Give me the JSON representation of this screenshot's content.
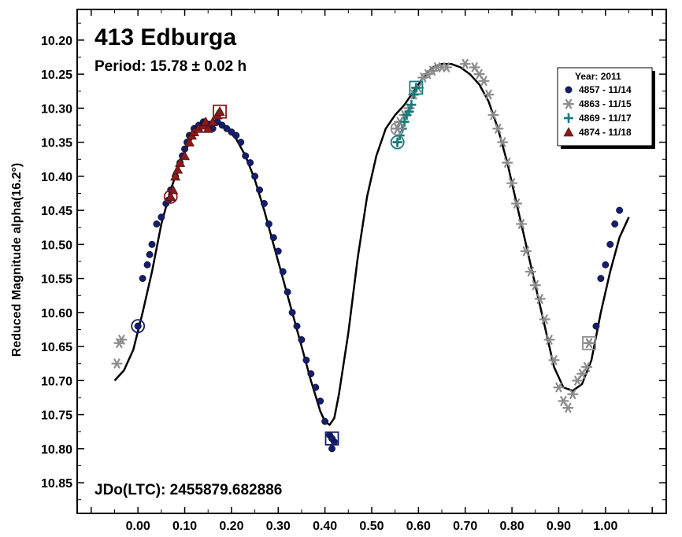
{
  "chart_data": {
    "type": "scatter",
    "title": "413 Edburga",
    "subtitle": "Period: 15.78 ± 0.02 h",
    "annotation": "JDo(LTC): 2455879.682886",
    "ylabel": "Reduced Magnitude alpha(16.2°)",
    "xlabel": "",
    "xlim": [
      -0.13,
      1.13
    ],
    "ylim": [
      10.895,
      10.155
    ],
    "y_inverted": true,
    "grid": false,
    "x_ticks": [
      "0.00",
      "0.10",
      "0.20",
      "0.30",
      "0.40",
      "0.50",
      "0.60",
      "0.70",
      "0.80",
      "0.90",
      "1.00"
    ],
    "y_ticks": [
      "10.20",
      "10.25",
      "10.30",
      "10.35",
      "10.40",
      "10.45",
      "10.50",
      "10.55",
      "10.60",
      "10.65",
      "10.70",
      "10.75",
      "10.80",
      "10.85"
    ],
    "legend": {
      "title": "Year: 2011",
      "placement": "top-right",
      "entries": [
        "4857 - 11/14",
        "4863 - 11/15",
        "4869 - 11/17",
        "4874 - 11/18"
      ]
    },
    "series": [
      {
        "name": "4857 - 11/14",
        "marker": "circle",
        "color": "#141d6e",
        "start_marker": {
          "x": 0.0,
          "y": 10.62
        },
        "end_marker": {
          "x": 0.415,
          "y": 10.785
        },
        "points": [
          [
            0.0,
            10.62
          ],
          [
            0.01,
            10.55
          ],
          [
            0.02,
            10.53
          ],
          [
            0.025,
            10.515
          ],
          [
            0.03,
            10.5
          ],
          [
            0.04,
            10.47
          ],
          [
            0.05,
            10.46
          ],
          [
            0.06,
            10.44
          ],
          [
            0.065,
            10.435
          ],
          [
            0.07,
            10.42
          ],
          [
            0.08,
            10.4
          ],
          [
            0.09,
            10.38
          ],
          [
            0.095,
            10.37
          ],
          [
            0.1,
            10.36
          ],
          [
            0.105,
            10.35
          ],
          [
            0.11,
            10.34
          ],
          [
            0.12,
            10.33
          ],
          [
            0.13,
            10.325
          ],
          [
            0.14,
            10.32
          ],
          [
            0.15,
            10.325
          ],
          [
            0.16,
            10.33
          ],
          [
            0.17,
            10.32
          ],
          [
            0.18,
            10.325
          ],
          [
            0.19,
            10.33
          ],
          [
            0.2,
            10.335
          ],
          [
            0.21,
            10.34
          ],
          [
            0.22,
            10.35
          ],
          [
            0.23,
            10.37
          ],
          [
            0.24,
            10.38
          ],
          [
            0.25,
            10.4
          ],
          [
            0.26,
            10.42
          ],
          [
            0.27,
            10.44
          ],
          [
            0.28,
            10.47
          ],
          [
            0.29,
            10.49
          ],
          [
            0.3,
            10.51
          ],
          [
            0.31,
            10.54
          ],
          [
            0.32,
            10.57
          ],
          [
            0.33,
            10.6
          ],
          [
            0.34,
            10.62
          ],
          [
            0.35,
            10.64
          ],
          [
            0.36,
            10.67
          ],
          [
            0.37,
            10.69
          ],
          [
            0.38,
            10.71
          ],
          [
            0.39,
            10.73
          ],
          [
            0.4,
            10.76
          ],
          [
            0.41,
            10.78
          ],
          [
            0.415,
            10.785
          ],
          [
            0.42,
            10.79
          ],
          [
            0.415,
            10.8
          ],
          [
            0.98,
            10.62
          ],
          [
            0.99,
            10.55
          ],
          [
            1.0,
            10.53
          ],
          [
            1.01,
            10.5
          ],
          [
            1.02,
            10.47
          ],
          [
            1.03,
            10.45
          ]
        ]
      },
      {
        "name": "4863 - 11/15",
        "marker": "asterisk",
        "color": "#8c8c8c",
        "start_marker": {
          "x": 0.555,
          "y": 10.33
        },
        "end_marker": {
          "x": 0.965,
          "y": 10.645
        },
        "points": [
          [
            -0.045,
            10.675
          ],
          [
            -0.04,
            10.645
          ],
          [
            -0.035,
            10.64
          ],
          [
            0.555,
            10.33
          ],
          [
            0.56,
            10.32
          ],
          [
            0.57,
            10.31
          ],
          [
            0.58,
            10.3
          ],
          [
            0.59,
            10.28
          ],
          [
            0.6,
            10.27
          ],
          [
            0.61,
            10.255
          ],
          [
            0.62,
            10.25
          ],
          [
            0.63,
            10.245
          ],
          [
            0.64,
            10.24
          ],
          [
            0.65,
            10.24
          ],
          [
            0.66,
            10.24
          ],
          [
            0.7,
            10.235
          ],
          [
            0.72,
            10.24
          ],
          [
            0.73,
            10.25
          ],
          [
            0.74,
            10.26
          ],
          [
            0.75,
            10.28
          ],
          [
            0.76,
            10.31
          ],
          [
            0.77,
            10.33
          ],
          [
            0.78,
            10.35
          ],
          [
            0.79,
            10.38
          ],
          [
            0.8,
            10.41
          ],
          [
            0.81,
            10.44
          ],
          [
            0.82,
            10.47
          ],
          [
            0.83,
            10.51
          ],
          [
            0.84,
            10.54
          ],
          [
            0.85,
            10.56
          ],
          [
            0.86,
            10.58
          ],
          [
            0.87,
            10.61
          ],
          [
            0.88,
            10.64
          ],
          [
            0.89,
            10.67
          ],
          [
            0.9,
            10.71
          ],
          [
            0.91,
            10.73
          ],
          [
            0.92,
            10.74
          ],
          [
            0.93,
            10.72
          ],
          [
            0.94,
            10.7
          ],
          [
            0.95,
            10.69
          ],
          [
            0.96,
            10.68
          ],
          [
            0.965,
            10.645
          ]
        ]
      },
      {
        "name": "4869 - 11/17",
        "marker": "plus",
        "color": "#167a7a",
        "start_marker": {
          "x": 0.555,
          "y": 10.35
        },
        "end_marker": {
          "x": 0.595,
          "y": 10.27
        },
        "points": [
          [
            0.555,
            10.35
          ],
          [
            0.56,
            10.34
          ],
          [
            0.565,
            10.33
          ],
          [
            0.57,
            10.32
          ],
          [
            0.575,
            10.31
          ],
          [
            0.58,
            10.305
          ],
          [
            0.585,
            10.295
          ],
          [
            0.59,
            10.28
          ],
          [
            0.595,
            10.27
          ]
        ]
      },
      {
        "name": "4874 - 11/18",
        "marker": "triangle",
        "color": "#8b1a1a",
        "start_marker": {
          "x": 0.07,
          "y": 10.43
        },
        "end_marker": {
          "x": 0.175,
          "y": 10.305
        },
        "points": [
          [
            0.07,
            10.43
          ],
          [
            0.075,
            10.42
          ],
          [
            0.08,
            10.4
          ],
          [
            0.085,
            10.39
          ],
          [
            0.09,
            10.38
          ],
          [
            0.1,
            10.37
          ],
          [
            0.11,
            10.35
          ],
          [
            0.115,
            10.34
          ],
          [
            0.12,
            10.335
          ],
          [
            0.13,
            10.33
          ],
          [
            0.14,
            10.325
          ],
          [
            0.145,
            10.32
          ],
          [
            0.15,
            10.33
          ],
          [
            0.16,
            10.32
          ],
          [
            0.17,
            10.31
          ],
          [
            0.175,
            10.305
          ]
        ]
      }
    ],
    "fit_curve": {
      "name": "",
      "color": "#000000",
      "points": [
        [
          -0.05,
          10.7
        ],
        [
          -0.03,
          10.685
        ],
        [
          -0.01,
          10.655
        ],
        [
          0.01,
          10.6
        ],
        [
          0.03,
          10.54
        ],
        [
          0.05,
          10.47
        ],
        [
          0.07,
          10.42
        ],
        [
          0.09,
          10.38
        ],
        [
          0.11,
          10.35
        ],
        [
          0.13,
          10.33
        ],
        [
          0.15,
          10.32
        ],
        [
          0.17,
          10.32
        ],
        [
          0.19,
          10.33
        ],
        [
          0.21,
          10.345
        ],
        [
          0.23,
          10.37
        ],
        [
          0.25,
          10.405
        ],
        [
          0.27,
          10.45
        ],
        [
          0.29,
          10.5
        ],
        [
          0.31,
          10.55
        ],
        [
          0.33,
          10.6
        ],
        [
          0.35,
          10.65
        ],
        [
          0.37,
          10.7
        ],
        [
          0.39,
          10.745
        ],
        [
          0.4,
          10.76
        ],
        [
          0.41,
          10.765
        ],
        [
          0.42,
          10.755
        ],
        [
          0.43,
          10.72
        ],
        [
          0.45,
          10.63
        ],
        [
          0.47,
          10.52
        ],
        [
          0.49,
          10.43
        ],
        [
          0.51,
          10.37
        ],
        [
          0.53,
          10.33
        ],
        [
          0.55,
          10.31
        ],
        [
          0.57,
          10.295
        ],
        [
          0.59,
          10.275
        ],
        [
          0.61,
          10.255
        ],
        [
          0.63,
          10.24
        ],
        [
          0.65,
          10.235
        ],
        [
          0.67,
          10.235
        ],
        [
          0.69,
          10.24
        ],
        [
          0.71,
          10.25
        ],
        [
          0.73,
          10.265
        ],
        [
          0.75,
          10.29
        ],
        [
          0.77,
          10.33
        ],
        [
          0.79,
          10.38
        ],
        [
          0.81,
          10.44
        ],
        [
          0.83,
          10.5
        ],
        [
          0.85,
          10.56
        ],
        [
          0.87,
          10.62
        ],
        [
          0.89,
          10.68
        ],
        [
          0.91,
          10.71
        ],
        [
          0.93,
          10.715
        ],
        [
          0.95,
          10.705
        ],
        [
          0.97,
          10.67
        ],
        [
          0.99,
          10.6
        ],
        [
          1.01,
          10.54
        ],
        [
          1.03,
          10.49
        ],
        [
          1.05,
          10.46
        ]
      ]
    }
  }
}
